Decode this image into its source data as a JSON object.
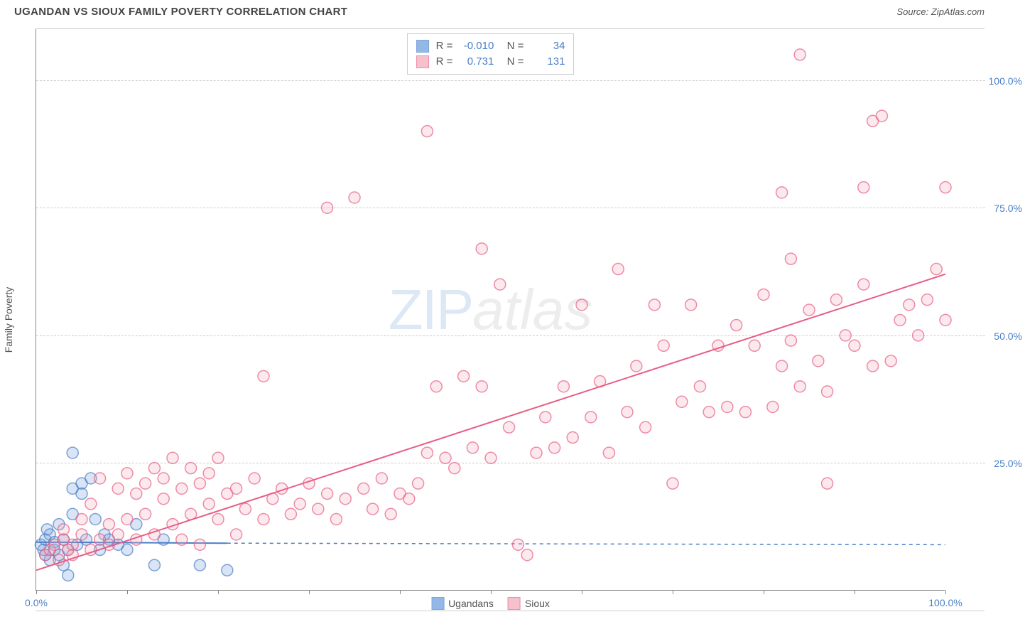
{
  "title": "UGANDAN VS SIOUX FAMILY POVERTY CORRELATION CHART",
  "source": "Source: ZipAtlas.com",
  "watermark": {
    "zip": "ZIP",
    "atlas": "atlas"
  },
  "y_axis_title": "Family Poverty",
  "chart": {
    "type": "scatter",
    "xlim": [
      0,
      100
    ],
    "ylim": [
      0,
      110
    ],
    "x_ticks": [
      0,
      10,
      20,
      30,
      40,
      50,
      60,
      70,
      80,
      90,
      100
    ],
    "x_tick_labels": {
      "0": "0.0%",
      "100": "100.0%"
    },
    "y_gridlines": [
      25,
      50,
      75,
      100
    ],
    "y_tick_labels": {
      "25": "25.0%",
      "50": "50.0%",
      "75": "75.0%",
      "100": "100.0%"
    },
    "background_color": "#ffffff",
    "grid_color": "#cccccc",
    "marker_radius": 8,
    "marker_stroke_width": 1.5,
    "marker_fill_opacity": 0.25,
    "series": [
      {
        "name": "Ugandans",
        "color": "#6699dd",
        "stroke": "#4a7fc6",
        "R": "-0.010",
        "N": "34",
        "regression": {
          "x1": 0,
          "y1": 9.5,
          "x2": 21,
          "y2": 9.3,
          "dash_x2": 100,
          "dash_y2": 9.0
        },
        "points": [
          [
            0.5,
            9
          ],
          [
            0.8,
            8
          ],
          [
            1,
            10
          ],
          [
            1,
            7
          ],
          [
            1.2,
            12
          ],
          [
            1.5,
            6
          ],
          [
            1.5,
            11
          ],
          [
            2,
            8
          ],
          [
            2,
            9.5
          ],
          [
            2.5,
            7
          ],
          [
            2.5,
            13
          ],
          [
            3,
            5
          ],
          [
            3,
            10
          ],
          [
            3.5,
            8
          ],
          [
            3.5,
            3
          ],
          [
            4,
            20
          ],
          [
            4,
            15
          ],
          [
            4.5,
            9
          ],
          [
            4,
            27
          ],
          [
            5,
            21
          ],
          [
            5,
            19
          ],
          [
            5.5,
            10
          ],
          [
            6,
            22
          ],
          [
            6.5,
            14
          ],
          [
            7,
            8
          ],
          [
            7.5,
            11
          ],
          [
            8,
            10
          ],
          [
            9,
            9
          ],
          [
            10,
            8
          ],
          [
            11,
            13
          ],
          [
            13,
            5
          ],
          [
            14,
            10
          ],
          [
            18,
            5
          ],
          [
            21,
            4
          ]
        ]
      },
      {
        "name": "Sioux",
        "color": "#f4a6b8",
        "stroke": "#e85d85",
        "R": "0.731",
        "N": "131",
        "regression": {
          "x1": 0,
          "y1": 4,
          "x2": 100,
          "y2": 62
        },
        "points": [
          [
            1,
            7
          ],
          [
            1.5,
            8
          ],
          [
            2,
            9
          ],
          [
            2.5,
            6
          ],
          [
            3,
            10
          ],
          [
            3,
            12
          ],
          [
            3.5,
            8
          ],
          [
            4,
            9
          ],
          [
            4,
            7
          ],
          [
            5,
            11
          ],
          [
            5,
            14
          ],
          [
            6,
            8
          ],
          [
            6,
            17
          ],
          [
            7,
            10
          ],
          [
            7,
            22
          ],
          [
            8,
            9
          ],
          [
            8,
            13
          ],
          [
            9,
            20
          ],
          [
            9,
            11
          ],
          [
            10,
            23
          ],
          [
            10,
            14
          ],
          [
            11,
            10
          ],
          [
            11,
            19
          ],
          [
            12,
            21
          ],
          [
            12,
            15
          ],
          [
            13,
            24
          ],
          [
            13,
            11
          ],
          [
            14,
            18
          ],
          [
            14,
            22
          ],
          [
            15,
            13
          ],
          [
            15,
            26
          ],
          [
            16,
            20
          ],
          [
            16,
            10
          ],
          [
            17,
            24
          ],
          [
            17,
            15
          ],
          [
            18,
            21
          ],
          [
            18,
            9
          ],
          [
            19,
            17
          ],
          [
            19,
            23
          ],
          [
            20,
            14
          ],
          [
            20,
            26
          ],
          [
            21,
            19
          ],
          [
            22,
            11
          ],
          [
            22,
            20
          ],
          [
            23,
            16
          ],
          [
            24,
            22
          ],
          [
            25,
            14
          ],
          [
            25,
            42
          ],
          [
            26,
            18
          ],
          [
            27,
            20
          ],
          [
            28,
            15
          ],
          [
            29,
            17
          ],
          [
            30,
            21
          ],
          [
            31,
            16
          ],
          [
            32,
            19
          ],
          [
            32,
            75
          ],
          [
            33,
            14
          ],
          [
            34,
            18
          ],
          [
            35,
            77
          ],
          [
            36,
            20
          ],
          [
            37,
            16
          ],
          [
            38,
            22
          ],
          [
            39,
            15
          ],
          [
            40,
            19
          ],
          [
            41,
            18
          ],
          [
            42,
            21
          ],
          [
            43,
            27
          ],
          [
            43,
            90
          ],
          [
            44,
            40
          ],
          [
            45,
            26
          ],
          [
            46,
            24
          ],
          [
            47,
            42
          ],
          [
            48,
            28
          ],
          [
            49,
            40
          ],
          [
            49,
            67
          ],
          [
            50,
            26
          ],
          [
            51,
            60
          ],
          [
            52,
            32
          ],
          [
            53,
            9
          ],
          [
            54,
            7
          ],
          [
            55,
            27
          ],
          [
            56,
            34
          ],
          [
            57,
            28
          ],
          [
            58,
            40
          ],
          [
            59,
            30
          ],
          [
            60,
            56
          ],
          [
            61,
            34
          ],
          [
            62,
            41
          ],
          [
            63,
            27
          ],
          [
            64,
            63
          ],
          [
            65,
            35
          ],
          [
            66,
            44
          ],
          [
            67,
            32
          ],
          [
            68,
            56
          ],
          [
            69,
            48
          ],
          [
            70,
            21
          ],
          [
            71,
            37
          ],
          [
            72,
            56
          ],
          [
            73,
            40
          ],
          [
            74,
            35
          ],
          [
            75,
            48
          ],
          [
            76,
            36
          ],
          [
            77,
            52
          ],
          [
            78,
            35
          ],
          [
            79,
            48
          ],
          [
            80,
            58
          ],
          [
            81,
            36
          ],
          [
            82,
            44
          ],
          [
            82,
            78
          ],
          [
            83,
            49
          ],
          [
            83,
            65
          ],
          [
            84,
            40
          ],
          [
            84,
            105
          ],
          [
            85,
            55
          ],
          [
            86,
            45
          ],
          [
            87,
            39
          ],
          [
            87,
            21
          ],
          [
            88,
            57
          ],
          [
            89,
            50
          ],
          [
            90,
            48
          ],
          [
            91,
            60
          ],
          [
            91,
            79
          ],
          [
            92,
            44
          ],
          [
            92,
            92
          ],
          [
            93,
            93
          ],
          [
            94,
            45
          ],
          [
            95,
            53
          ],
          [
            96,
            56
          ],
          [
            97,
            50
          ],
          [
            98,
            57
          ],
          [
            99,
            63
          ],
          [
            100,
            53
          ],
          [
            100,
            79
          ]
        ]
      }
    ]
  },
  "colors": {
    "axis_text": "#4a7fc6",
    "label_text": "#555555",
    "title_text": "#444444"
  }
}
